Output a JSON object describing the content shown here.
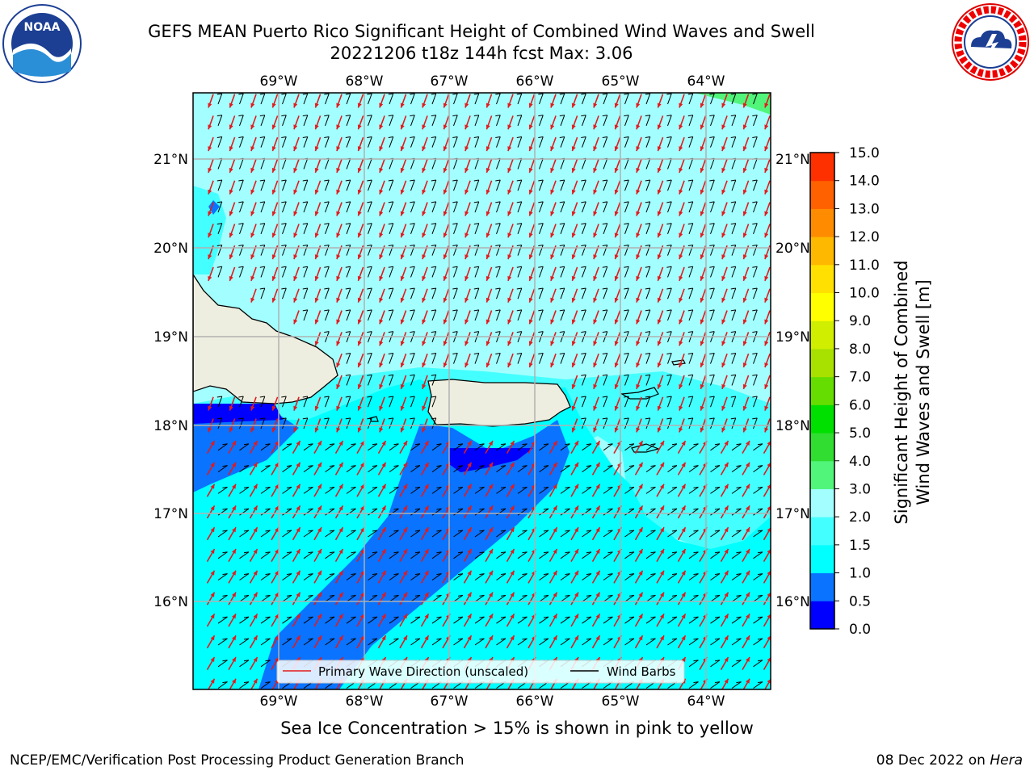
{
  "title": {
    "line1": "GEFS MEAN Puerto Rico Significant Height of Combined Wind Waves and Swell",
    "line2": "20221206 t18z 144h fcst   Max: 3.06"
  },
  "logos": {
    "left": {
      "icon": "noaa-logo",
      "text": "NOAA"
    },
    "right": {
      "icon": "nws-logo",
      "text": "NATIONAL WEATHER SERVICE"
    }
  },
  "map": {
    "lon_labels": [
      "69°W",
      "68°W",
      "67°W",
      "66°W",
      "65°W",
      "64°W"
    ],
    "lat_labels": [
      "21°N",
      "20°N",
      "19°N",
      "18°N",
      "17°N",
      "16°N"
    ],
    "background_color": "#a3ffff",
    "land_color": "#eeeee0"
  },
  "legend": {
    "wave_label": "Primary Wave Direction (unscaled)",
    "wind_label": "Wind Barbs",
    "wave_color": "#e31a1c",
    "wind_color": "#000000"
  },
  "colorbar": {
    "title_line1": "Significant Height of Combined",
    "title_line2": "Wind Waves and Swell [m]",
    "ticks": [
      "0.0",
      "0.5",
      "1.0",
      "1.5",
      "2.0",
      "3.0",
      "4.0",
      "5.0",
      "6.0",
      "7.0",
      "8.0",
      "9.0",
      "10.0",
      "11.0",
      "12.0",
      "13.0",
      "14.0",
      "15.0"
    ],
    "colors": [
      "#0000ff",
      "#0a73ff",
      "#00ffff",
      "#44ffff",
      "#a3ffff",
      "#50f57a",
      "#30dd30",
      "#00e000",
      "#66dd00",
      "#a8e000",
      "#d0ee00",
      "#ffff00",
      "#ffe000",
      "#ffb800",
      "#ff8c00",
      "#ff6000",
      "#ff3000",
      "#ff0000"
    ]
  },
  "sea_ice_note": "Sea Ice Concentration > 15% is shown in pink to yellow",
  "footer": {
    "left": "NCEP/EMC/Verification Post Processing Product Generation Branch",
    "right_prefix": "08 Dec 2022 on ",
    "right_host": "Hera"
  }
}
